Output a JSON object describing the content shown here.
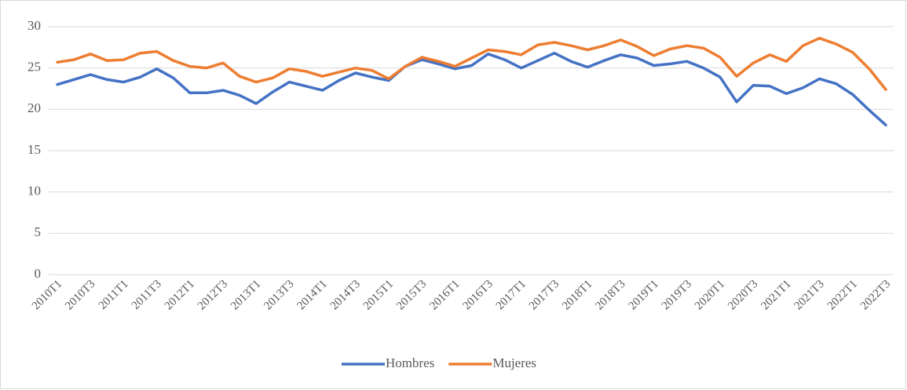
{
  "chart_data": {
    "type": "line",
    "categories": [
      "2010T1",
      null,
      "2010T3",
      null,
      "2011T1",
      null,
      "2011T3",
      null,
      "2012T1",
      null,
      "2012T3",
      null,
      "2013T1",
      null,
      "2013T3",
      null,
      "2014T1",
      null,
      "2014T3",
      null,
      "2015T1",
      null,
      "2015T3",
      null,
      "2016T1",
      null,
      "2016T3",
      null,
      "2017T1",
      null,
      "2017T3",
      null,
      "2018T1",
      null,
      "2018T3",
      null,
      "2019T1",
      null,
      "2019T3",
      null,
      "2020T1",
      null,
      "2020T3",
      null,
      "2021T1",
      null,
      "2021T3",
      null,
      "2022T1",
      null,
      "2022T3"
    ],
    "series": [
      {
        "name": "Hombres",
        "color": "#4472c4",
        "values": [
          23.0,
          23.6,
          24.2,
          23.6,
          23.3,
          23.9,
          24.9,
          23.8,
          22.0,
          22.0,
          22.3,
          21.7,
          20.7,
          22.1,
          23.3,
          22.8,
          22.3,
          23.5,
          24.4,
          23.9,
          23.5,
          25.2,
          26.0,
          25.5,
          24.9,
          25.3,
          26.7,
          26.0,
          25.0,
          25.9,
          26.8,
          25.8,
          25.1,
          25.9,
          26.6,
          26.2,
          25.3,
          25.5,
          25.8,
          25.0,
          23.9,
          20.9,
          22.9,
          22.8,
          21.9,
          22.6,
          23.7,
          23.1,
          21.8,
          19.9,
          18.1
        ]
      },
      {
        "name": "Mujeres",
        "color": "#ed7d31",
        "values": [
          25.7,
          26.0,
          26.7,
          25.9,
          26.0,
          26.8,
          27.0,
          25.9,
          25.2,
          25.0,
          25.6,
          24.0,
          23.3,
          23.8,
          24.9,
          24.6,
          24.0,
          24.5,
          25.0,
          24.7,
          23.7,
          25.2,
          26.3,
          25.8,
          25.2,
          26.2,
          27.2,
          27.0,
          26.6,
          27.8,
          28.1,
          27.7,
          27.2,
          27.7,
          28.4,
          27.6,
          26.5,
          27.3,
          27.7,
          27.4,
          26.3,
          24.0,
          25.6,
          26.6,
          25.8,
          27.7,
          28.6,
          27.9,
          26.9,
          24.9,
          22.4
        ]
      }
    ],
    "ylim": [
      0,
      30
    ],
    "yticks": [
      0,
      5,
      10,
      15,
      20,
      25,
      30
    ],
    "grid": true,
    "legend": "bottom"
  }
}
